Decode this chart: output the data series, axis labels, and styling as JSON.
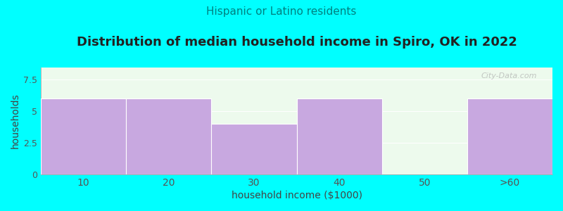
{
  "categories": [
    "10",
    "20",
    "30",
    "40",
    "50",
    ">60"
  ],
  "values": [
    6,
    6,
    4,
    6,
    0,
    6
  ],
  "bar_color": "#c8a8e0",
  "background_color": "#00FFFF",
  "plot_bg_color": "#edfaed",
  "title": "Distribution of median household income in Spiro, OK in 2022",
  "subtitle": "Hispanic or Latino residents",
  "xlabel": "household income ($1000)",
  "ylabel": "households",
  "ylim": [
    0,
    8.5
  ],
  "yticks": [
    0,
    2.5,
    5,
    7.5
  ],
  "title_fontsize": 13,
  "subtitle_fontsize": 11,
  "subtitle_color": "#008080",
  "title_color": "#222222",
  "axis_label_fontsize": 10,
  "watermark": "City-Data.com",
  "watermark_color": "#aaaaaa"
}
